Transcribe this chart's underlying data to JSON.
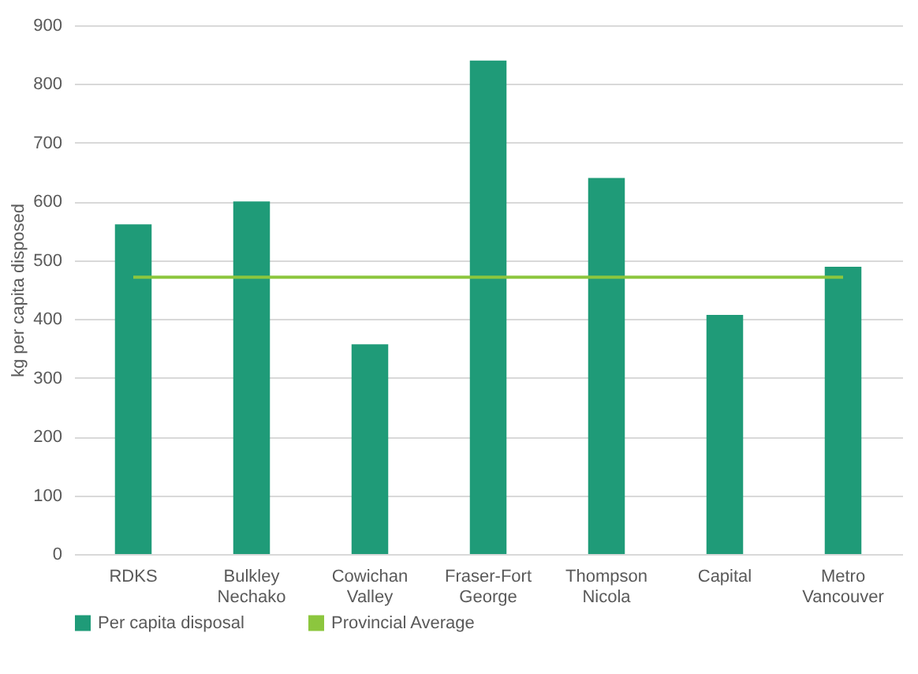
{
  "chart_data": {
    "type": "bar",
    "ylabel": "kg per capita disposed",
    "categories": [
      "RDKS",
      "Bulkley Nechako",
      "Cowichan Valley",
      "Fraser-Fort George",
      "Thompson Nicola",
      "Capital",
      "Metro Vancouver"
    ],
    "series": [
      {
        "name": "Per capita disposal",
        "color": "#1f9b78",
        "values": [
          561,
          600,
          357,
          840,
          640,
          407,
          489
        ]
      },
      {
        "name": "Provincial Average",
        "type": "line",
        "color": "#8cc63e",
        "values": [
          471,
          471,
          471,
          471,
          471,
          471,
          471
        ]
      }
    ],
    "ylim": [
      0,
      900
    ],
    "yticks": [
      0,
      100,
      200,
      300,
      400,
      500,
      600,
      700,
      800,
      900
    ],
    "grid": "y",
    "legend": "bottom"
  }
}
